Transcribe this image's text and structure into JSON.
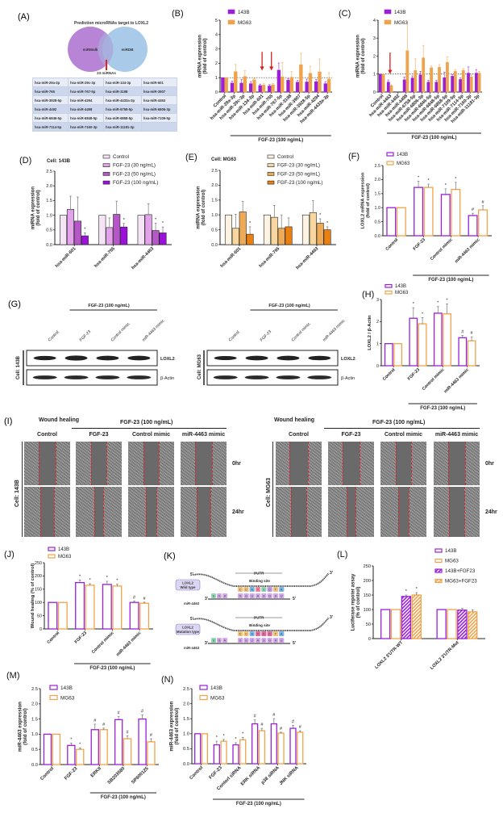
{
  "panel_A": {
    "label": "(A)",
    "venn_title": "Prediction microRNAs target to LOXL2",
    "set_left": "miRWalk",
    "set_right": "miRDB",
    "overlap_label": "23 miRNAs",
    "colors": {
      "left": "#b784d6",
      "right": "#a9cbe9",
      "overlap": "#e0202a"
    },
    "table": [
      [
        "hsa-miR-29a-3p",
        "hsa-miR-29c-3p",
        "hsa-miR-134-3p",
        "hsa-miR-601"
      ],
      [
        "hsa-miR-765",
        "hsa-miR-767-5p",
        "hsa-miR-3198",
        "hsa-miR-3907"
      ],
      [
        "hsa-miR-3928-5p",
        "hsa-miR-4294",
        "hsa-miR-4433a-3p",
        "hsa-miR-4463"
      ],
      [
        "hsa-miR-4492",
        "hsa-miR-4498",
        "hsa-miR-6758-5p",
        "hsa-miR-6806-3p"
      ],
      [
        "hsa-miR-6846-5p",
        "hsa-miR-6848-5p",
        "hsa-miR-6858-5p",
        "hsa-miR-7109-5p"
      ],
      [
        "hsa-miR-7114-5p",
        "hsa-miR-7160-3p",
        "hsa-miR-11181-3p",
        ""
      ]
    ]
  },
  "panel_G": {
    "label": "(G)",
    "treatment": "FGF-23 (100 ng/mL)",
    "lanes": [
      "Control",
      "FGF-23",
      "Control mimic",
      "miR-4463 mimic"
    ],
    "proteins": [
      "LOXL2",
      "β-Actin"
    ],
    "cells": [
      "Cell: 143B",
      "Cell: MG63"
    ]
  },
  "panel_I": {
    "label": "(I)",
    "title": "Wound healing",
    "treatment": "FGF-23 (100 ng/mL)",
    "columns": [
      "Control",
      "FGF-23",
      "Control mimic",
      "miR-4463 mimic"
    ],
    "rows": [
      "0hr",
      "24hr"
    ],
    "cells": [
      "Cell: 143B",
      "Cell: MG63"
    ]
  },
  "panel_K": {
    "label": "(K)",
    "utr": "3'UTR",
    "binding_site": "Binding site",
    "wild_type": [
      "LOXL2",
      "Wild type"
    ],
    "mutation_type": [
      "LOXL2",
      "Mutation type"
    ],
    "mirna": "miR-4463",
    "five_prime": "5'",
    "three_prime": "3'",
    "mrna_seq": [
      "C",
      "C",
      "A",
      "T",
      "C",
      "C",
      "T",
      "A"
    ],
    "mirna_seq": [
      "G",
      "G",
      "U",
      "A",
      "G",
      "G",
      "A",
      "U"
    ],
    "mirna_tail": [
      "U",
      "G",
      "A"
    ]
  },
  "chart_data": [
    {
      "panel": "(B)",
      "type": "bar",
      "categories": [
        "Control",
        "hsa-miR-29a-3p",
        "hsa-miR-29c-3p",
        "hsa-miR-134-3p",
        "hsa-miR-601",
        "hsa-miR-765",
        "hsa-miR-767-5p",
        "hsa-miR-3198",
        "hsa-miR-3907",
        "hsa-miR-3928-5p",
        "hsa-miR-4294",
        "hsa-miR-4433a-3p"
      ],
      "series": [
        {
          "name": "143B",
          "style": "solid",
          "color": "#9b1fd8",
          "values": [
            1,
            0.62,
            0.62,
            0.58,
            0.45,
            0.42,
            1.52,
            0.82,
            0.68,
            0.7,
            0.72,
            0.58
          ],
          "errors": [
            0,
            0.15,
            0.25,
            0.15,
            0.1,
            0.1,
            0.5,
            0.1,
            0.12,
            0.2,
            0.15,
            0.15
          ]
        },
        {
          "name": "MG63",
          "style": "solid",
          "color": "#f0a34a",
          "values": [
            1,
            1.42,
            1.08,
            0.85,
            0.48,
            0.5,
            1.05,
            1.02,
            1.9,
            1.3,
            1.4,
            0.9
          ],
          "errors": [
            0,
            0.5,
            0.4,
            0.1,
            0.1,
            0.1,
            1.0,
            0.4,
            0.8,
            0.5,
            0.9,
            0.45
          ]
        }
      ],
      "ylabel": [
        "miRNA expression",
        "(fold of control)"
      ],
      "yticks": [
        "0",
        "1",
        "2",
        "3",
        "4",
        "5"
      ],
      "ylim": [
        0,
        5
      ],
      "reference_line": 1,
      "arrows_at": [
        "hsa-miR-601",
        "hsa-miR-765"
      ],
      "bracket": {
        "label": "FGF-23 (100 ng/mL)",
        "from": "hsa-miR-29a-3p",
        "to": "hsa-miR-4433a-3p"
      },
      "legend": "top-left"
    },
    {
      "panel": "(C)",
      "type": "bar",
      "categories": [
        "Control",
        "hsa-miR-4463",
        "hsa-miR-4492",
        "hsa-miR-4498",
        "hsa-miR-6758-5p",
        "hsa-miR-6806-3p",
        "hsa-miR-6846-5p",
        "hsa-miR-6848-5p",
        "hsa-miR-6858-5p",
        "hsa-miR-7109-5p",
        "hsa-miR-7114-5p",
        "hsa-miR-7160-3p",
        "hsa-miR-11181-3p"
      ],
      "series": [
        {
          "name": "143B",
          "style": "solid",
          "color": "#9b1fd8",
          "values": [
            1,
            0.55,
            null,
            0.68,
            0.78,
            0.95,
            0.55,
            0.55,
            0.8,
            0.88,
            0.7,
            1.05,
            1.05
          ],
          "errors": [
            0,
            0.12,
            null,
            0.15,
            0.12,
            0.2,
            0.1,
            0.1,
            0.3,
            0.1,
            0.08,
            0.35,
            0.2
          ]
        },
        {
          "name": "MG63",
          "style": "solid",
          "color": "#f0a34a",
          "values": [
            1,
            0.35,
            null,
            2.3,
            1.2,
            1.9,
            1.35,
            1.38,
            1.65,
            1.15,
            1.2,
            0.85,
            1.05
          ],
          "errors": [
            0,
            0.05,
            null,
            1.6,
            0.65,
            0.7,
            0.1,
            0.15,
            0.3,
            0.1,
            0.1,
            0.1,
            0.1
          ]
        }
      ],
      "ylabel": [
        "miRNA expression",
        "(fold of control)"
      ],
      "yticks": [
        "0",
        "1",
        "2",
        "3",
        "4"
      ],
      "ylim": [
        0,
        4
      ],
      "reference_line": 1,
      "arrows_at": [
        "hsa-miR-4463"
      ],
      "bracket": {
        "label": "FGF-23 (100 ng/mL)",
        "from": "hsa-miR-4463",
        "to": "hsa-miR-11181-3p"
      },
      "legend": "top-left"
    },
    {
      "panel": "(D)",
      "type": "bar",
      "subtitle": "Cell: 143B",
      "categories": [
        "hsa-miR-601",
        "hsa-miR-765",
        "hsa-miR-4463"
      ],
      "series": [
        {
          "name": "Control",
          "style": "solid",
          "color": "#f4e4f6",
          "values": [
            1,
            1,
            1
          ],
          "errors": [
            0,
            0,
            0
          ],
          "marks": [
            "",
            "",
            ""
          ]
        },
        {
          "name": "FGF-23 (30 ng/mL)",
          "style": "solid",
          "color": "#e3a3ea",
          "values": [
            1.2,
            0.58,
            1.02
          ],
          "errors": [
            0.45,
            0.33,
            0.37
          ],
          "marks": [
            "",
            "",
            ""
          ]
        },
        {
          "name": "FGF-23 (50 ng/mL)",
          "style": "solid",
          "color": "#b657c8",
          "values": [
            0.8,
            1.03,
            0.48
          ],
          "errors": [
            0.82,
            0.45,
            0.25
          ],
          "marks": [
            "",
            "",
            "*"
          ]
        },
        {
          "name": "FGF-23 (100 ng/mL)",
          "style": "solid",
          "color": "#9a12d8",
          "values": [
            0.3,
            0.6,
            0.4
          ],
          "errors": [
            0.1,
            0.12,
            0.2
          ],
          "marks": [
            "*",
            "*",
            "*"
          ]
        }
      ],
      "ylabel": [
        "miRNA expression",
        "(fold of control)"
      ],
      "yticks": [
        "0.0",
        "0.5",
        "1.0",
        "1.5",
        "2.0",
        "2.5"
      ],
      "ylim": [
        0,
        2.5
      ],
      "legend": "top-right"
    },
    {
      "panel": "(E)",
      "type": "bar",
      "subtitle": "Cell: MG63",
      "categories": [
        "hsa-miR-601",
        "hsa-miR-765",
        "hsa-miR-4463"
      ],
      "series": [
        {
          "name": "Control",
          "style": "solid",
          "color": "#fdf3e2",
          "values": [
            1,
            1,
            1
          ],
          "errors": [
            0,
            0,
            0
          ],
          "marks": [
            "",
            "",
            ""
          ]
        },
        {
          "name": "FGF-23 (30 ng/mL)",
          "style": "solid",
          "color": "#f8d6a0",
          "values": [
            0.55,
            0.92,
            1.08
          ],
          "errors": [
            0.47,
            0.4,
            0.4
          ],
          "marks": [
            "",
            "",
            ""
          ]
        },
        {
          "name": "FGF-23 (50 ng/mL)",
          "style": "solid",
          "color": "#efaa55",
          "values": [
            1.1,
            0.55,
            0.72
          ],
          "errors": [
            0.35,
            0.45,
            0.15
          ],
          "marks": [
            "",
            "",
            "*"
          ]
        },
        {
          "name": "FGF-23 (100 ng/mL)",
          "style": "solid",
          "color": "#e98012",
          "values": [
            0.35,
            0.6,
            0.5
          ],
          "errors": [
            0.25,
            0.3,
            0.1
          ],
          "marks": [
            "*",
            "",
            "*"
          ]
        }
      ],
      "ylabel": [
        "miRNA expression",
        "(fold of control)"
      ],
      "yticks": [
        "0.0",
        "0.5",
        "1.0",
        "1.5",
        "2.0",
        "2.5"
      ],
      "ylim": [
        0,
        2.5
      ],
      "legend": "top-right"
    },
    {
      "panel": "(F)",
      "type": "bar",
      "categories": [
        "Control",
        "FGF-23",
        "Control mimic",
        "miR-4463 mimic"
      ],
      "series": [
        {
          "name": "143B",
          "style": "outline",
          "color": "#9b1fd8",
          "values": [
            1,
            1.72,
            1.47,
            0.72
          ],
          "errors": [
            0,
            0.22,
            0.2,
            0.08
          ],
          "marks": [
            "",
            "*",
            "*",
            "#"
          ]
        },
        {
          "name": "MG63",
          "style": "outline",
          "color": "#f0a34a",
          "values": [
            1,
            1.72,
            1.65,
            0.92
          ],
          "errors": [
            0,
            0.12,
            0.25,
            0.15
          ],
          "marks": [
            "",
            "*",
            "*",
            "#"
          ]
        }
      ],
      "ylabel": [
        "LOXL2 mRNA expression",
        "(fold of control)"
      ],
      "yticks": [
        "0.0",
        "0.5",
        "1.0",
        "1.5",
        "2.0",
        "2.5"
      ],
      "ylim": [
        0,
        2.5
      ],
      "bracket": {
        "label": "FGF-23 (100 ng/mL)",
        "from": "FGF-23",
        "to": "miR-4463 mimic"
      },
      "legend": "top-left"
    },
    {
      "panel": "(H)",
      "type": "bar",
      "categories": [
        "Control",
        "FGF-23",
        "Control mimic",
        "miR-4463 mimic"
      ],
      "series": [
        {
          "name": "143B",
          "style": "outline",
          "color": "#9b1fd8",
          "values": [
            1,
            2.15,
            2.38,
            1.27
          ],
          "errors": [
            0,
            0.48,
            0.3,
            0.1
          ],
          "marks": [
            "",
            "*",
            "*",
            "#"
          ]
        },
        {
          "name": "MG63",
          "style": "outline",
          "color": "#f0a34a",
          "values": [
            1,
            1.9,
            2.35,
            1.13
          ],
          "errors": [
            0,
            0.28,
            0.45,
            0.18
          ],
          "marks": [
            "",
            "*",
            "*",
            "#"
          ]
        }
      ],
      "ylabel": [
        "LOXL2 / β-Actin"
      ],
      "yticks": [
        "0",
        "1",
        "2",
        "3"
      ],
      "ylim": [
        0,
        3
      ],
      "bracket": {
        "label": "FGF-23 (100 ng/mL)",
        "from": "FGF-23",
        "to": "miR-4463 mimic"
      },
      "legend": "top-left"
    },
    {
      "panel": "(J)",
      "type": "bar",
      "categories": [
        "Control",
        "FGF-23",
        "Control mimic",
        "miR-4463 mimic"
      ],
      "series": [
        {
          "name": "143B",
          "style": "outline",
          "color": "#9b1fd8",
          "values": [
            100,
            175,
            168,
            100
          ],
          "errors": [
            0,
            10,
            12,
            5
          ],
          "marks": [
            "",
            "*",
            "*",
            "#"
          ]
        },
        {
          "name": "MG63",
          "style": "outline",
          "color": "#f0a34a",
          "values": [
            100,
            165,
            162,
            97
          ],
          "errors": [
            0,
            6,
            7,
            4
          ],
          "marks": [
            "",
            "*",
            "*",
            "#"
          ]
        }
      ],
      "ylabel": [
        "Wound healing (% of control)"
      ],
      "yticks": [
        "0",
        "50",
        "100",
        "150",
        "200",
        "250"
      ],
      "ylim": [
        0,
        250
      ],
      "bracket": {
        "label": "FGF-23 (100 ng/mL)",
        "from": "FGF-23",
        "to": "miR-4463 mimic"
      },
      "legend": "top-left"
    },
    {
      "panel": "(L)",
      "type": "bar",
      "categories": [
        "LOXL2 3'UTR-WT",
        "LOXL2 3'UTR-Mut"
      ],
      "series": [
        {
          "name": "143B",
          "style": "outline",
          "color": "#9b1fd8",
          "values": [
            100,
            100
          ],
          "errors": [
            0,
            0
          ],
          "marks": [
            "",
            ""
          ]
        },
        {
          "name": "MG63",
          "style": "outline",
          "color": "#f0a34a",
          "values": [
            100,
            100
          ],
          "errors": [
            0,
            0
          ],
          "marks": [
            "",
            ""
          ]
        },
        {
          "name": "143B+FGF23",
          "style": "hatched",
          "color": "#9b1fd8",
          "values": [
            145,
            98
          ],
          "errors": [
            5,
            6
          ],
          "marks": [
            "*",
            ""
          ]
        },
        {
          "name": "MG63+FGF23",
          "style": "hatched",
          "color": "#f0a34a",
          "values": [
            150,
            92
          ],
          "errors": [
            8,
            7
          ],
          "marks": [
            "*",
            ""
          ]
        }
      ],
      "ylabel": [
        "Luciferase repoter assay",
        "(% of control)"
      ],
      "yticks": [
        "0",
        "50",
        "100",
        "150",
        "200",
        "250"
      ],
      "ylim": [
        0,
        250
      ],
      "legend": "top-right"
    },
    {
      "panel": "(M)",
      "type": "bar",
      "categories": [
        "Control",
        "FGF-23",
        "ERKII",
        "SB203580",
        "SP600125"
      ],
      "series": [
        {
          "name": "143B",
          "style": "outline",
          "color": "#9b1fd8",
          "values": [
            1,
            0.63,
            1.15,
            1.48,
            1.5
          ],
          "errors": [
            0,
            0.08,
            0.18,
            0.1,
            0.14
          ],
          "marks": [
            "",
            "*",
            "#",
            "#",
            "#"
          ]
        },
        {
          "name": "MG63",
          "style": "outline",
          "color": "#f0a34a",
          "values": [
            1,
            0.5,
            1.15,
            0.85,
            0.75
          ],
          "errors": [
            0,
            0.05,
            0.05,
            0.1,
            0.1
          ],
          "marks": [
            "",
            "*",
            "#",
            "#",
            "#"
          ]
        }
      ],
      "ylabel": [
        "miR-4463 expression",
        "(fold of control)"
      ],
      "yticks": [
        "0.0",
        "0.5",
        "1.0",
        "1.5",
        "2.0",
        "2.5"
      ],
      "ylim": [
        0,
        2.5
      ],
      "bracket": {
        "label": "FGF-23 (100 ng/mL)",
        "from": "ERKII",
        "to": "SP600125"
      },
      "legend": "top-left"
    },
    {
      "panel": "(N)",
      "type": "bar",
      "categories": [
        "Control",
        "FGF-23",
        "Contorl siRNA",
        "ERK siRNA",
        "p38 siRNA",
        "JNK siRNA"
      ],
      "series": [
        {
          "name": "143B",
          "style": "outline",
          "color": "#9b1fd8",
          "values": [
            1,
            0.63,
            0.63,
            1.33,
            1.33,
            1.18
          ],
          "errors": [
            0,
            0.12,
            0.07,
            0.13,
            0.17,
            0.1
          ],
          "marks": [
            "",
            "*",
            "*",
            "#",
            "#",
            "#"
          ]
        },
        {
          "name": "MG63",
          "style": "outline",
          "color": "#f0a34a",
          "values": [
            1,
            0.75,
            0.8,
            1.1,
            1.02,
            1.05
          ],
          "errors": [
            0,
            0.06,
            0.08,
            0.08,
            0.03,
            0.05
          ],
          "marks": [
            "",
            "*",
            "*",
            "#",
            "#",
            "#"
          ]
        }
      ],
      "ylabel": [
        "miR-4463 expression",
        "(fold of control)"
      ],
      "yticks": [
        "0.0",
        "0.5",
        "1.0",
        "1.5",
        "2.0",
        "2.5"
      ],
      "ylim": [
        0,
        2.5
      ],
      "bracket": {
        "label": "FGF-23 (100 ng/mL)",
        "from": "FGF-23",
        "to": "JNK siRNA"
      },
      "legend": "top-left"
    }
  ]
}
